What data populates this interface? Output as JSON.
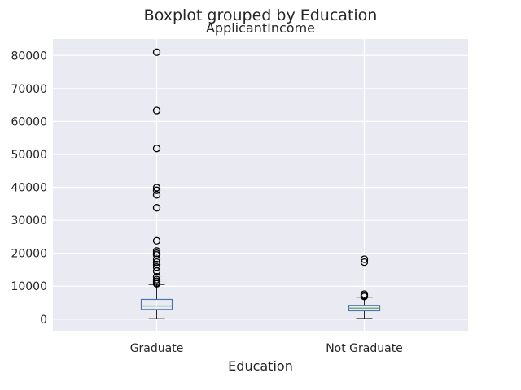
{
  "colors": {
    "plot_background": "#eaeaf2",
    "grid": "#ffffff",
    "box": "#4c72b0",
    "median": "#55a868",
    "whisker": "#262626",
    "flier": "#000000",
    "text": "#262626"
  },
  "chart_data": {
    "type": "box",
    "title": "Boxplot grouped by Education",
    "subtitle": "ApplicantIncome",
    "xlabel": "Education",
    "ylabel": "",
    "ylim": [
      -3500,
      85000
    ],
    "yticks": [
      0,
      10000,
      20000,
      30000,
      40000,
      50000,
      60000,
      70000,
      80000
    ],
    "ytick_labels": [
      "0",
      "10000",
      "20000",
      "30000",
      "40000",
      "50000",
      "60000",
      "70000",
      "80000"
    ],
    "grid": true,
    "categories": [
      "Graduate",
      "Not Graduate"
    ],
    "boxes": [
      {
        "category": "Graduate",
        "whisker_low": 150,
        "q1": 2950,
        "median": 4000,
        "q3": 6000,
        "whisker_high": 10500,
        "fliers": [
          10700,
          11000,
          11500,
          12000,
          12900,
          14600,
          15800,
          16600,
          17300,
          18200,
          19500,
          20000,
          20700,
          23800,
          33800,
          37700,
          39100,
          39900,
          51800,
          63300,
          81000
        ]
      },
      {
        "category": "Not Graduate",
        "whisker_low": 200,
        "q1": 2550,
        "median": 3350,
        "q3": 4200,
        "whisker_high": 6700,
        "fliers": [
          6900,
          7200,
          7600,
          17300,
          18200
        ]
      }
    ]
  }
}
